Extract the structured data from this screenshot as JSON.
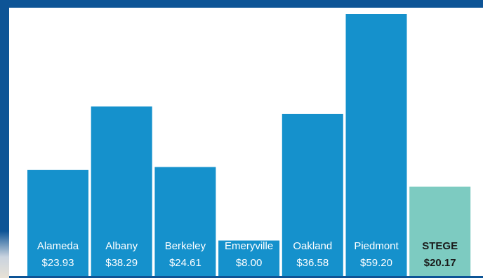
{
  "chart_data": {
    "type": "bar",
    "categories": [
      "Alameda",
      "Albany",
      "Berkeley",
      "Emeryville",
      "Oakland",
      "Piedmont",
      "STEGE"
    ],
    "values": [
      23.93,
      38.29,
      24.61,
      8.0,
      36.58,
      59.2,
      20.17
    ],
    "value_labels": [
      "$23.93",
      "$38.29",
      "$24.61",
      "$8.00",
      "$36.58",
      "$59.20",
      "$20.17"
    ],
    "highlight": "STEGE",
    "title": "",
    "xlabel": "",
    "ylabel": "",
    "ylim": [
      0,
      59.2
    ],
    "grid": false,
    "colors": {
      "bar": "#1591cc",
      "highlight_bar": "#7dcbc1",
      "frame": "#0d5496",
      "background": "#ffffff"
    }
  }
}
